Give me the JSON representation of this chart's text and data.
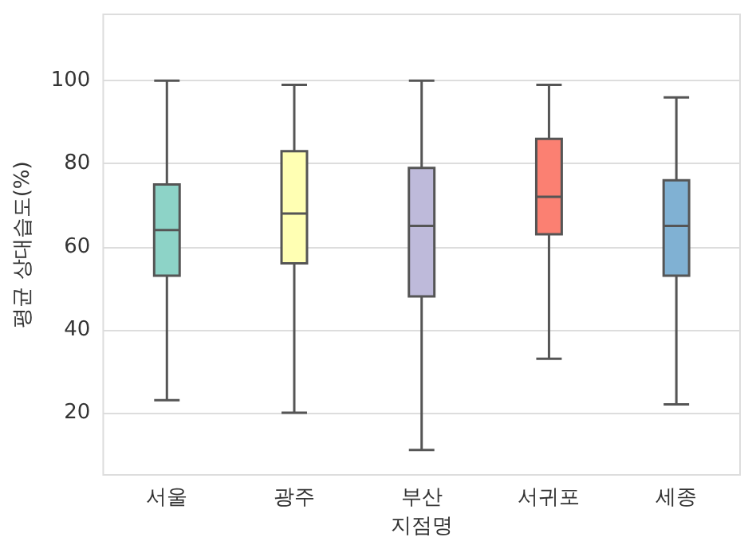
{
  "chart_data": {
    "type": "box",
    "xlabel": "지점명",
    "ylabel": "평균 상대습도(%)",
    "categories": [
      "서울",
      "광주",
      "부산",
      "서귀포",
      "세종"
    ],
    "boxes": [
      {
        "low": 23,
        "q1": 53,
        "median": 64,
        "q3": 75,
        "high": 100
      },
      {
        "low": 20,
        "q1": 56,
        "median": 68,
        "q3": 83,
        "high": 99
      },
      {
        "low": 11,
        "q1": 48,
        "median": 65,
        "q3": 79,
        "high": 100
      },
      {
        "low": 33,
        "q1": 63,
        "median": 72,
        "q3": 86,
        "high": 99
      },
      {
        "low": 22,
        "q1": 53,
        "median": 65,
        "q3": 76,
        "high": 96
      }
    ],
    "colors": [
      "#8dd3c7",
      "#ffffb3",
      "#bebada",
      "#fb8072",
      "#80b1d3"
    ],
    "ylim": [
      5,
      116
    ],
    "yticks": [
      20,
      40,
      60,
      80,
      100
    ],
    "grid": "y"
  }
}
